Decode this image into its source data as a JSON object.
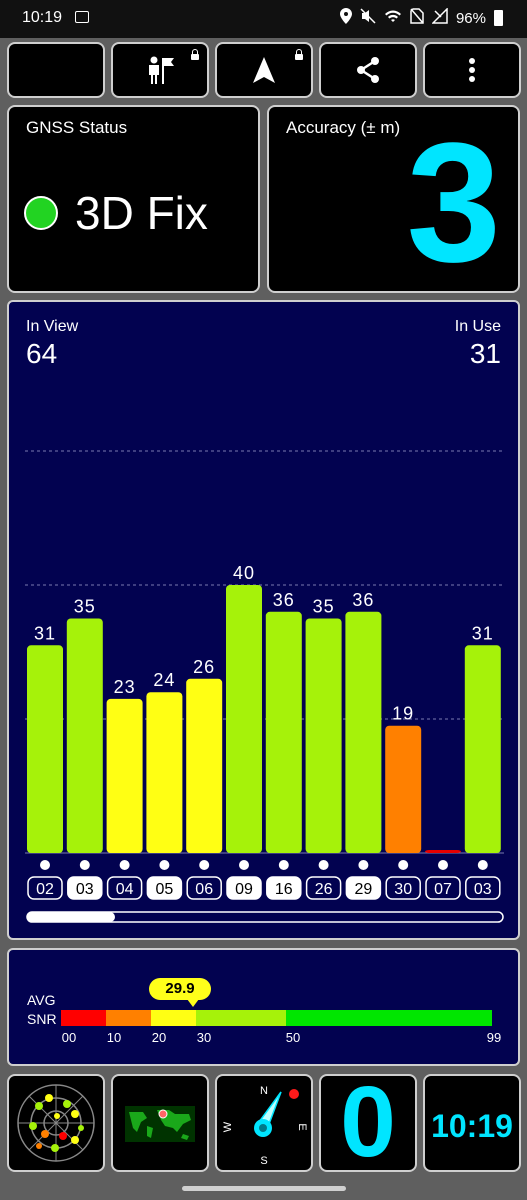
{
  "status_bar": {
    "time": "10:19",
    "battery": "96%"
  },
  "toolbar": {
    "buttons": [
      {
        "icon": "moon-icon"
      },
      {
        "icon": "person-flag-icon",
        "locked": true
      },
      {
        "icon": "navigation-arrow-icon",
        "locked": true
      },
      {
        "icon": "share-icon"
      },
      {
        "icon": "more-vert-icon"
      }
    ]
  },
  "gnss_status": {
    "label": "GNSS Status",
    "value": "3D Fix",
    "indicator_color": "#22d322"
  },
  "accuracy": {
    "label": "Accuracy (± m)",
    "value": "3"
  },
  "sat_counts": {
    "in_view_label": "In View",
    "in_view": "64",
    "in_use_label": "In Use",
    "in_use": "31"
  },
  "chart_data": {
    "type": "bar",
    "categories": [
      "02",
      "03",
      "04",
      "05",
      "06",
      "09",
      "16",
      "26",
      "29",
      "30",
      "07",
      "03"
    ],
    "values": [
      31,
      35,
      23,
      24,
      26,
      40,
      36,
      35,
      36,
      19,
      0,
      31
    ],
    "colors": [
      "#a6f20a",
      "#a6f20a",
      "#ffff14",
      "#ffff14",
      "#ffff14",
      "#a6f20a",
      "#a6f20a",
      "#a6f20a",
      "#a6f20a",
      "#ff8000",
      "#e60000",
      "#a6f20a"
    ],
    "highlighted": [
      false,
      true,
      false,
      true,
      false,
      true,
      true,
      false,
      true,
      false,
      false,
      false
    ],
    "ylim": [
      0,
      70
    ],
    "grid": true
  },
  "snr_bar": {
    "avg_label": "AVG",
    "snr_label": "SNR",
    "avg_value": "29.9",
    "ticks": [
      "00",
      "10",
      "20",
      "30",
      "50",
      "99"
    ],
    "colors": [
      "#ff0000",
      "#ff8000",
      "#ffff14",
      "#a6f20a",
      "#00e600"
    ]
  },
  "bottom_bar": {
    "compass_labels": {
      "n": "N",
      "e": "E",
      "s": "S",
      "w": "W"
    },
    "speed": "0",
    "clock": "10:19"
  }
}
